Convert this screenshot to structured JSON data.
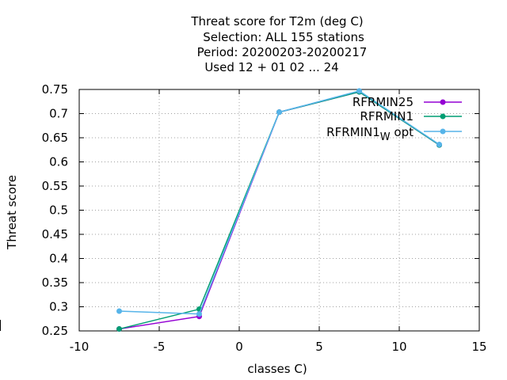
{
  "chart_data": {
    "type": "line",
    "title_lines": [
      "Threat score  for T2m (deg C)",
      "Selection: ALL    155 stations",
      "Period: 20200203-20200217",
      "Used  12 + 01 02 ... 24"
    ],
    "xlabel": "classes C)",
    "ylabel": "Threat score",
    "xlim": [
      -10,
      15
    ],
    "ylim": [
      0.25,
      0.75
    ],
    "xticks": [
      -10,
      -5,
      0,
      5,
      10,
      15
    ],
    "yticks": [
      0.25,
      0.3,
      0.35,
      0.4,
      0.45,
      0.5,
      0.55,
      0.6,
      0.65,
      0.7,
      0.75
    ],
    "grid": true,
    "legend_position": "top-right",
    "series": [
      {
        "name": "RFRMIN25",
        "color": "#9400d3",
        "marker": "filled-circle",
        "x": [
          -7.5,
          -2.5,
          2.5,
          7.5,
          12.5
        ],
        "y": [
          0.254,
          0.28,
          0.703,
          0.745,
          0.635
        ]
      },
      {
        "name": "RFRMIN1",
        "color": "#009e73",
        "marker": "filled-circle",
        "x": [
          -7.5,
          -2.5,
          2.5,
          7.5,
          12.5
        ],
        "y": [
          0.254,
          0.295,
          0.703,
          0.745,
          0.635
        ]
      },
      {
        "name": "RFRMIN1",
        "name_subscript": "W",
        "name_suffix": " opt",
        "color": "#56b4e9",
        "marker": "filled-circle",
        "x": [
          -7.5,
          -2.5,
          2.5,
          7.5,
          12.5
        ],
        "y": [
          0.291,
          0.285,
          0.703,
          0.747,
          0.636
        ]
      }
    ]
  }
}
